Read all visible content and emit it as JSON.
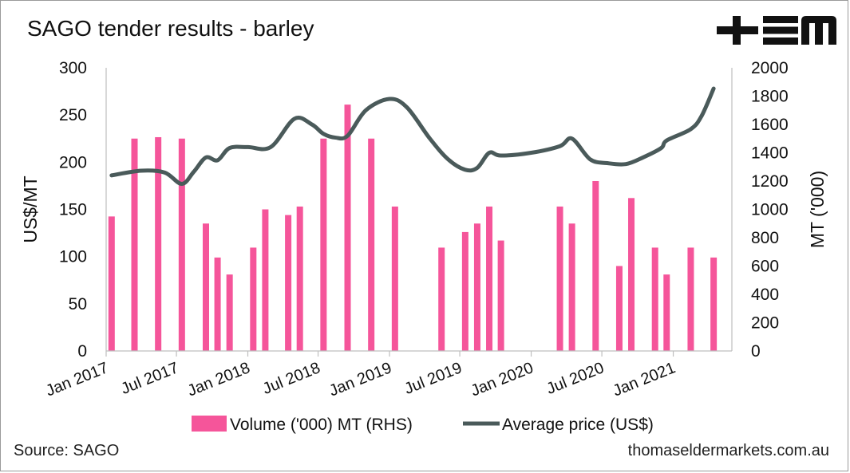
{
  "title": "SAGO tender results - barley",
  "source": "Source: SAGO",
  "website": "thomaseldermarkets.com.au",
  "colors": {
    "bar": "#F5559A",
    "line": "#4A5A5A",
    "axis": "#bfbfbf"
  },
  "chart_data": {
    "type": "bar",
    "left_axis": {
      "label": "US$/MT",
      "range": [
        0,
        300
      ],
      "ticks": [
        0,
        50,
        100,
        150,
        200,
        250,
        300
      ]
    },
    "right_axis": {
      "label": "MT ('000)",
      "range": [
        0,
        2000
      ],
      "ticks": [
        0,
        200,
        400,
        600,
        800,
        1000,
        1200,
        1400,
        1600,
        1800,
        2000
      ]
    },
    "x_ticks": [
      {
        "date": "2017-01-01",
        "label": "Jan 2017"
      },
      {
        "date": "2017-07-01",
        "label": "Jul 2017"
      },
      {
        "date": "2018-01-01",
        "label": "Jan 2018"
      },
      {
        "date": "2018-07-01",
        "label": "Jul 2018"
      },
      {
        "date": "2019-01-01",
        "label": "Jan 2019"
      },
      {
        "date": "2019-07-01",
        "label": "Jul 2019"
      },
      {
        "date": "2020-01-01",
        "label": "Jan 2020"
      },
      {
        "date": "2020-07-01",
        "label": "Jul 2020"
      },
      {
        "date": "2021-01-01",
        "label": "Jan 2021"
      }
    ],
    "legend": {
      "position": "bottom",
      "bar_label": "Volume ('000) MT (RHS)",
      "line_label": "Average price (US$)"
    },
    "series": [
      {
        "name": "Volume ('000) MT (RHS)",
        "type": "bar",
        "axis": "right",
        "points": [
          {
            "x": "2017-01-15",
            "y": 950
          },
          {
            "x": "2017-03-15",
            "y": 1500
          },
          {
            "x": "2017-05-15",
            "y": 1510
          },
          {
            "x": "2017-07-15",
            "y": 1500
          },
          {
            "x": "2017-09-15",
            "y": 900
          },
          {
            "x": "2017-10-15",
            "y": 660
          },
          {
            "x": "2017-11-15",
            "y": 540
          },
          {
            "x": "2018-01-15",
            "y": 730
          },
          {
            "x": "2018-02-15",
            "y": 1000
          },
          {
            "x": "2018-04-15",
            "y": 960
          },
          {
            "x": "2018-05-15",
            "y": 1020
          },
          {
            "x": "2018-07-15",
            "y": 1500
          },
          {
            "x": "2018-09-15",
            "y": 1740
          },
          {
            "x": "2018-11-15",
            "y": 1500
          },
          {
            "x": "2019-01-15",
            "y": 1020
          },
          {
            "x": "2019-05-15",
            "y": 730
          },
          {
            "x": "2019-07-15",
            "y": 840
          },
          {
            "x": "2019-08-15",
            "y": 900
          },
          {
            "x": "2019-09-15",
            "y": 1020
          },
          {
            "x": "2019-10-15",
            "y": 780
          },
          {
            "x": "2020-03-15",
            "y": 1020
          },
          {
            "x": "2020-04-15",
            "y": 900
          },
          {
            "x": "2020-06-15",
            "y": 1200
          },
          {
            "x": "2020-08-15",
            "y": 600
          },
          {
            "x": "2020-09-15",
            "y": 1080
          },
          {
            "x": "2020-11-15",
            "y": 730
          },
          {
            "x": "2020-12-15",
            "y": 540
          },
          {
            "x": "2021-02-15",
            "y": 730
          },
          {
            "x": "2021-04-15",
            "y": 660
          }
        ]
      },
      {
        "name": "Average price (US$)",
        "type": "line",
        "axis": "left",
        "points": [
          {
            "x": "2017-01-15",
            "y": 186
          },
          {
            "x": "2017-04-01",
            "y": 191
          },
          {
            "x": "2017-06-01",
            "y": 189
          },
          {
            "x": "2017-07-15",
            "y": 177
          },
          {
            "x": "2017-08-15",
            "y": 190
          },
          {
            "x": "2017-09-15",
            "y": 205
          },
          {
            "x": "2017-10-15",
            "y": 202
          },
          {
            "x": "2017-11-15",
            "y": 215
          },
          {
            "x": "2018-01-01",
            "y": 216
          },
          {
            "x": "2018-03-01",
            "y": 216
          },
          {
            "x": "2018-05-01",
            "y": 246
          },
          {
            "x": "2018-06-15",
            "y": 240
          },
          {
            "x": "2018-07-15",
            "y": 230
          },
          {
            "x": "2018-08-15",
            "y": 226
          },
          {
            "x": "2018-09-15",
            "y": 228
          },
          {
            "x": "2018-11-01",
            "y": 255
          },
          {
            "x": "2019-01-01",
            "y": 267
          },
          {
            "x": "2019-02-15",
            "y": 258
          },
          {
            "x": "2019-04-15",
            "y": 225
          },
          {
            "x": "2019-06-01",
            "y": 203
          },
          {
            "x": "2019-07-15",
            "y": 192
          },
          {
            "x": "2019-08-15",
            "y": 194
          },
          {
            "x": "2019-09-15",
            "y": 210
          },
          {
            "x": "2019-10-15",
            "y": 207
          },
          {
            "x": "2020-01-01",
            "y": 210
          },
          {
            "x": "2020-03-15",
            "y": 217
          },
          {
            "x": "2020-04-15",
            "y": 225
          },
          {
            "x": "2020-06-01",
            "y": 203
          },
          {
            "x": "2020-07-15",
            "y": 199
          },
          {
            "x": "2020-09-01",
            "y": 198
          },
          {
            "x": "2020-10-15",
            "y": 205
          },
          {
            "x": "2020-12-01",
            "y": 215
          },
          {
            "x": "2020-12-15",
            "y": 223
          },
          {
            "x": "2021-02-15",
            "y": 235
          },
          {
            "x": "2021-03-15",
            "y": 249
          },
          {
            "x": "2021-04-15",
            "y": 278
          }
        ]
      }
    ]
  }
}
